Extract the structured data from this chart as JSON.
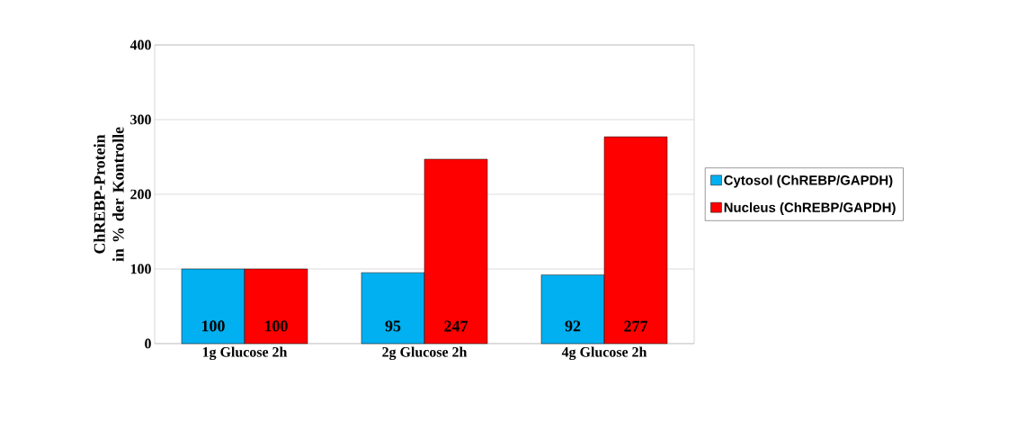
{
  "chart_data": {
    "type": "bar",
    "ylabel": "ChREBP-Protein in % der Kontrolle",
    "categories": [
      "1g Glucose 2h",
      "2g Glucose 2h",
      "4g Glucose 2h"
    ],
    "series": [
      {
        "name": "Cytosol (ChREBP/GAPDH)",
        "color": "#00b0f0",
        "values": [
          100,
          95,
          92
        ]
      },
      {
        "name": "Nucleus (ChREBP/GAPDH)",
        "color": "#ff0000",
        "values": [
          100,
          247,
          277
        ]
      }
    ],
    "ylim": [
      0,
      400
    ],
    "yticks": [
      0,
      100,
      200,
      300,
      400
    ],
    "grid": "y",
    "legend": "right",
    "data_labels": true
  }
}
